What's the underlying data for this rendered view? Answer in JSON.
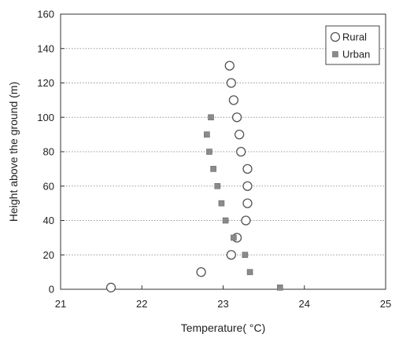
{
  "chart_data": {
    "type": "scatter",
    "title": "",
    "xlabel": "Temperature( °C)",
    "ylabel": "Height above the ground (m)",
    "xlim": [
      21,
      25
    ],
    "ylim": [
      0,
      160
    ],
    "xticks": [
      "21",
      "22",
      "23",
      "24",
      "25"
    ],
    "yticks": [
      "0",
      "20",
      "40",
      "60",
      "80",
      "100",
      "120",
      "140",
      "160"
    ],
    "grid": "horizontal-dotted",
    "legend_position": "top-right",
    "series": [
      {
        "name": "Rural",
        "marker": "open-circle",
        "color": "#555555",
        "points": [
          {
            "x": 21.62,
            "y": 1
          },
          {
            "x": 22.73,
            "y": 10
          },
          {
            "x": 23.1,
            "y": 20
          },
          {
            "x": 23.17,
            "y": 30
          },
          {
            "x": 23.28,
            "y": 40
          },
          {
            "x": 23.3,
            "y": 50
          },
          {
            "x": 23.3,
            "y": 60
          },
          {
            "x": 23.3,
            "y": 70
          },
          {
            "x": 23.22,
            "y": 80
          },
          {
            "x": 23.2,
            "y": 90
          },
          {
            "x": 23.17,
            "y": 100
          },
          {
            "x": 23.13,
            "y": 110
          },
          {
            "x": 23.1,
            "y": 120
          },
          {
            "x": 23.08,
            "y": 130
          }
        ]
      },
      {
        "name": "Urban",
        "marker": "small-square",
        "color": "#8a8a8a",
        "points": [
          {
            "x": 23.7,
            "y": 1
          },
          {
            "x": 23.33,
            "y": 10
          },
          {
            "x": 23.27,
            "y": 20
          },
          {
            "x": 23.13,
            "y": 30
          },
          {
            "x": 23.03,
            "y": 40
          },
          {
            "x": 22.98,
            "y": 50
          },
          {
            "x": 22.93,
            "y": 60
          },
          {
            "x": 22.88,
            "y": 70
          },
          {
            "x": 22.83,
            "y": 80
          },
          {
            "x": 22.8,
            "y": 90
          },
          {
            "x": 22.85,
            "y": 100
          }
        ]
      }
    ]
  }
}
